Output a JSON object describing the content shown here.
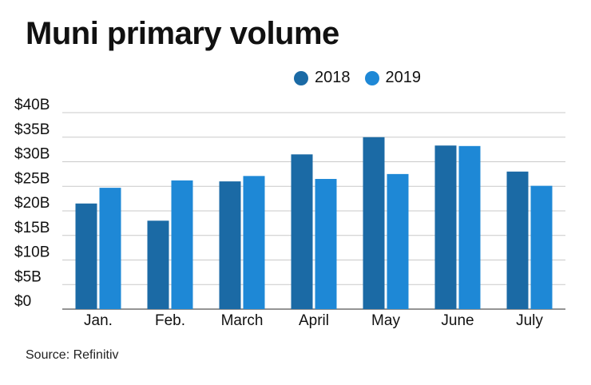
{
  "chart_data": {
    "type": "bar",
    "title": "Muni primary volume",
    "categories": [
      "Jan.",
      "Feb.",
      "March",
      "April",
      "May",
      "June",
      "July"
    ],
    "series": [
      {
        "name": "2018",
        "color": "#1b6aa5",
        "values": [
          21.5,
          18,
          26,
          31.5,
          35,
          33.3,
          28
        ]
      },
      {
        "name": "2019",
        "color": "#1e88d6",
        "values": [
          24.7,
          26.2,
          27.1,
          26.5,
          27.5,
          33.2,
          25.1
        ]
      }
    ],
    "yticks": [
      "$0",
      "$5B",
      "$10B",
      "$15B",
      "$20B",
      "$25B",
      "$30B",
      "$35B",
      "$40B"
    ],
    "ylim": [
      0,
      40
    ],
    "grid": true,
    "legend_position": "top-right",
    "source": "Source: Refinitiv"
  }
}
